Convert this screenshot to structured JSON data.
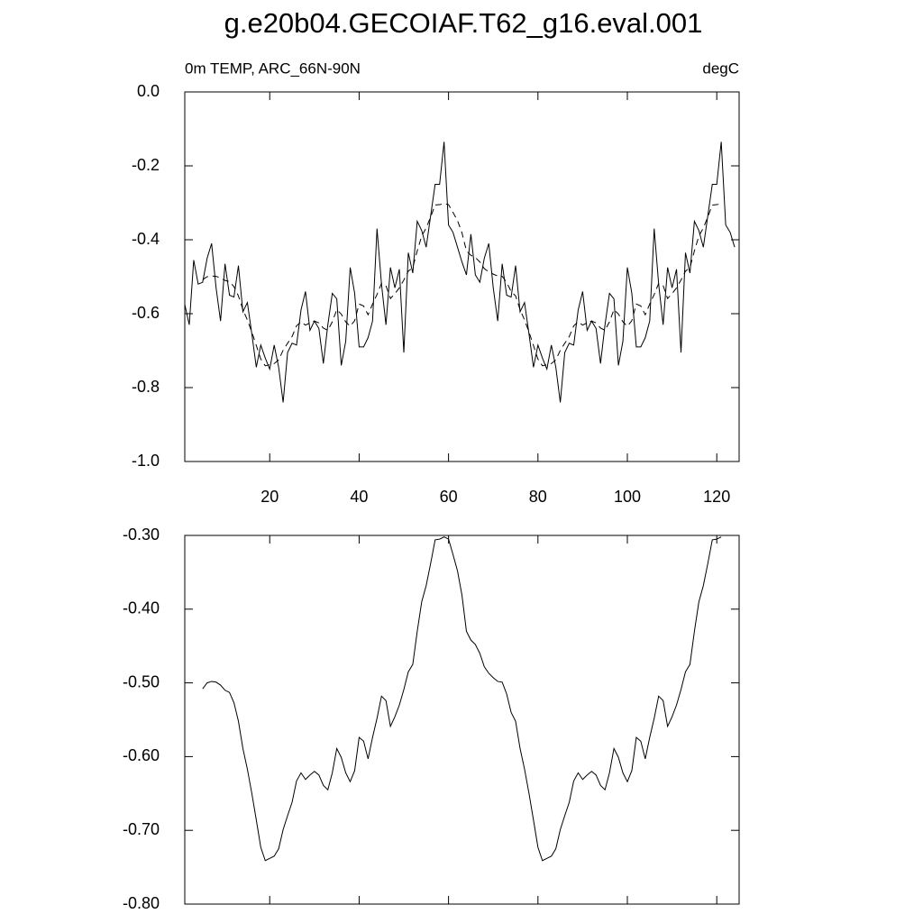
{
  "chart_data": [
    {
      "type": "line",
      "title": "g.e20b04.GECOIAF.T62_g16.eval.001",
      "subtitle_left": "0m TEMP, ARC_66N-90N",
      "subtitle_right": "degC",
      "x": [
        1,
        2,
        3,
        4,
        5,
        6,
        7,
        8,
        9,
        10,
        11,
        12,
        13,
        14,
        15,
        16,
        17,
        18,
        19,
        20,
        21,
        22,
        23,
        24,
        25,
        26,
        27,
        28,
        29,
        30,
        31,
        32,
        33,
        34,
        35,
        36,
        37,
        38,
        39,
        40,
        41,
        42,
        43,
        44,
        45,
        46,
        47,
        48,
        49,
        50,
        51,
        52,
        53,
        54,
        55,
        56,
        57,
        58,
        59,
        60,
        61,
        62,
        63,
        64,
        65,
        66,
        67,
        68,
        69,
        70,
        71,
        72,
        73,
        74,
        75,
        76,
        77,
        78,
        79,
        80,
        81,
        82,
        83,
        84,
        85,
        86,
        87,
        88,
        89,
        90,
        91,
        92,
        93,
        94,
        95,
        96,
        97,
        98,
        99,
        100,
        101,
        102,
        103,
        104,
        105,
        106,
        107,
        108,
        109,
        110,
        111,
        112,
        113,
        114,
        115,
        116,
        117,
        118,
        119,
        120,
        121,
        122,
        123,
        124
      ],
      "series": [
        {
          "color": "#000000",
          "dash": "solid",
          "values": [
            -0.575,
            -0.63,
            -0.455,
            -0.52,
            -0.515,
            -0.45,
            -0.41,
            -0.53,
            -0.62,
            -0.465,
            -0.55,
            -0.555,
            -0.47,
            -0.595,
            -0.57,
            -0.655,
            -0.745,
            -0.685,
            -0.72,
            -0.75,
            -0.685,
            -0.745,
            -0.84,
            -0.705,
            -0.68,
            -0.685,
            -0.59,
            -0.54,
            -0.645,
            -0.62,
            -0.64,
            -0.735,
            -0.63,
            -0.545,
            -0.56,
            -0.74,
            -0.675,
            -0.475,
            -0.545,
            -0.69,
            -0.69,
            -0.665,
            -0.62,
            -0.37,
            -0.52,
            -0.63,
            -0.475,
            -0.53,
            -0.48,
            -0.705,
            -0.435,
            -0.49,
            -0.35,
            -0.375,
            -0.42,
            -0.335,
            -0.25,
            -0.25,
            -0.135,
            -0.36,
            -0.38,
            -0.42,
            -0.46,
            -0.495,
            -0.385,
            -0.495,
            -0.515,
            -0.45,
            -0.41,
            -0.53,
            -0.62,
            -0.465,
            -0.55,
            -0.555,
            -0.47,
            -0.595,
            -0.57,
            -0.655,
            -0.745,
            -0.685,
            -0.72,
            -0.75,
            -0.685,
            -0.745,
            -0.84,
            -0.705,
            -0.68,
            -0.685,
            -0.59,
            -0.54,
            -0.645,
            -0.62,
            -0.64,
            -0.735,
            -0.63,
            -0.545,
            -0.56,
            -0.74,
            -0.675,
            -0.475,
            -0.545,
            -0.69,
            -0.69,
            -0.665,
            -0.62,
            -0.37,
            -0.52,
            -0.63,
            -0.475,
            -0.53,
            -0.48,
            -0.705,
            -0.435,
            -0.49,
            -0.35,
            -0.375,
            -0.42,
            -0.335,
            -0.25,
            -0.25,
            -0.135,
            -0.36,
            -0.38,
            -0.42
          ]
        },
        {
          "color": "#000000",
          "dash": "dashed",
          "values": [
            null,
            null,
            null,
            null,
            -0.508,
            -0.5,
            -0.498,
            -0.499,
            -0.503,
            -0.51,
            -0.513,
            -0.527,
            -0.552,
            -0.589,
            -0.617,
            -0.65,
            -0.686,
            -0.723,
            -0.741,
            -0.738,
            -0.735,
            -0.725,
            -0.699,
            -0.68,
            -0.662,
            -0.633,
            -0.622,
            -0.631,
            -0.625,
            -0.62,
            -0.625,
            -0.639,
            -0.645,
            -0.622,
            -0.589,
            -0.601,
            -0.622,
            -0.634,
            -0.619,
            -0.574,
            -0.579,
            -0.603,
            -0.574,
            -0.548,
            -0.518,
            -0.524,
            -0.559,
            -0.546,
            -0.53,
            -0.509,
            -0.485,
            -0.475,
            -0.43,
            -0.39,
            -0.368,
            -0.338,
            -0.306,
            -0.305,
            -0.302,
            -0.305,
            -0.326,
            -0.348,
            -0.381,
            -0.43,
            -0.442,
            -0.448,
            -0.46,
            -0.478,
            -0.487,
            -0.493,
            -0.498,
            -0.499,
            -0.515,
            -0.54,
            -0.552,
            -0.589,
            -0.617,
            -0.65,
            -0.686,
            -0.723,
            -0.741,
            -0.738,
            -0.735,
            -0.725,
            -0.699,
            -0.68,
            -0.662,
            -0.633,
            -0.622,
            -0.631,
            -0.625,
            -0.62,
            -0.625,
            -0.639,
            -0.645,
            -0.622,
            -0.589,
            -0.601,
            -0.622,
            -0.634,
            -0.619,
            -0.574,
            -0.579,
            -0.603,
            -0.574,
            -0.548,
            -0.518,
            -0.524,
            -0.559,
            -0.546,
            -0.53,
            -0.509,
            -0.485,
            -0.475,
            -0.43,
            -0.39,
            -0.368,
            -0.338,
            -0.306,
            -0.305,
            -0.302,
            null,
            null,
            null
          ]
        }
      ],
      "xlim": [
        1,
        125
      ],
      "xticks": [
        20,
        40,
        60,
        80,
        100,
        120
      ],
      "ylim": [
        -1.0,
        0.0
      ],
      "yticks": [
        {
          "value": 0,
          "label": "0.0"
        },
        -0.2,
        -0.4,
        -0.6,
        -0.8,
        {
          "value": -1.0,
          "label": "-1.0"
        }
      ]
    },
    {
      "type": "line",
      "x": [
        1,
        2,
        3,
        4,
        5,
        6,
        7,
        8,
        9,
        10,
        11,
        12,
        13,
        14,
        15,
        16,
        17,
        18,
        19,
        20,
        21,
        22,
        23,
        24,
        25,
        26,
        27,
        28,
        29,
        30,
        31,
        32,
        33,
        34,
        35,
        36,
        37,
        38,
        39,
        40,
        41,
        42,
        43,
        44,
        45,
        46,
        47,
        48,
        49,
        50,
        51,
        52,
        53,
        54,
        55,
        56,
        57,
        58,
        59,
        60,
        61,
        62,
        63,
        64,
        65,
        66,
        67,
        68,
        69,
        70,
        71,
        72,
        73,
        74,
        75,
        76,
        77,
        78,
        79,
        80,
        81,
        82,
        83,
        84,
        85,
        86,
        87,
        88,
        89,
        90,
        91,
        92,
        93,
        94,
        95,
        96,
        97,
        98,
        99,
        100,
        101,
        102,
        103,
        104,
        105,
        106,
        107,
        108,
        109,
        110,
        111,
        112,
        113,
        114,
        115,
        116,
        117,
        118,
        119,
        120,
        121,
        122,
        123,
        124
      ],
      "series": [
        {
          "color": "#000000",
          "dash": "solid",
          "values": [
            null,
            null,
            null,
            null,
            -0.508,
            -0.5,
            -0.498,
            -0.499,
            -0.503,
            -0.51,
            -0.513,
            -0.527,
            -0.552,
            -0.589,
            -0.617,
            -0.65,
            -0.686,
            -0.723,
            -0.741,
            -0.738,
            -0.735,
            -0.725,
            -0.699,
            -0.68,
            -0.662,
            -0.633,
            -0.622,
            -0.631,
            -0.625,
            -0.62,
            -0.625,
            -0.639,
            -0.645,
            -0.622,
            -0.589,
            -0.601,
            -0.622,
            -0.634,
            -0.619,
            -0.574,
            -0.579,
            -0.603,
            -0.574,
            -0.548,
            -0.518,
            -0.524,
            -0.559,
            -0.546,
            -0.53,
            -0.509,
            -0.485,
            -0.475,
            -0.43,
            -0.39,
            -0.368,
            -0.338,
            -0.306,
            -0.305,
            -0.302,
            -0.305,
            -0.326,
            -0.348,
            -0.381,
            -0.43,
            -0.442,
            -0.448,
            -0.46,
            -0.478,
            -0.487,
            -0.493,
            -0.498,
            -0.499,
            -0.515,
            -0.54,
            -0.552,
            -0.589,
            -0.617,
            -0.65,
            -0.686,
            -0.723,
            -0.741,
            -0.738,
            -0.735,
            -0.725,
            -0.699,
            -0.68,
            -0.662,
            -0.633,
            -0.622,
            -0.631,
            -0.625,
            -0.62,
            -0.625,
            -0.639,
            -0.645,
            -0.622,
            -0.589,
            -0.601,
            -0.622,
            -0.634,
            -0.619,
            -0.574,
            -0.579,
            -0.603,
            -0.574,
            -0.548,
            -0.518,
            -0.524,
            -0.559,
            -0.546,
            -0.53,
            -0.509,
            -0.485,
            -0.475,
            -0.43,
            -0.39,
            -0.368,
            -0.338,
            -0.306,
            -0.305,
            -0.302,
            null,
            null,
            null
          ]
        }
      ],
      "xlim": [
        1,
        125
      ],
      "xticks": [
        20,
        40,
        60,
        80,
        100,
        120
      ],
      "ylim": [
        -0.8,
        -0.3
      ],
      "yticks": [
        {
          "value": -0.3,
          "label": "-0.30"
        },
        {
          "value": -0.4,
          "label": "-0.40"
        },
        {
          "value": -0.5,
          "label": "-0.50"
        },
        {
          "value": -0.6,
          "label": "-0.60"
        },
        {
          "value": -0.7,
          "label": "-0.70"
        },
        {
          "value": -0.8,
          "label": "-0.80"
        }
      ]
    }
  ]
}
